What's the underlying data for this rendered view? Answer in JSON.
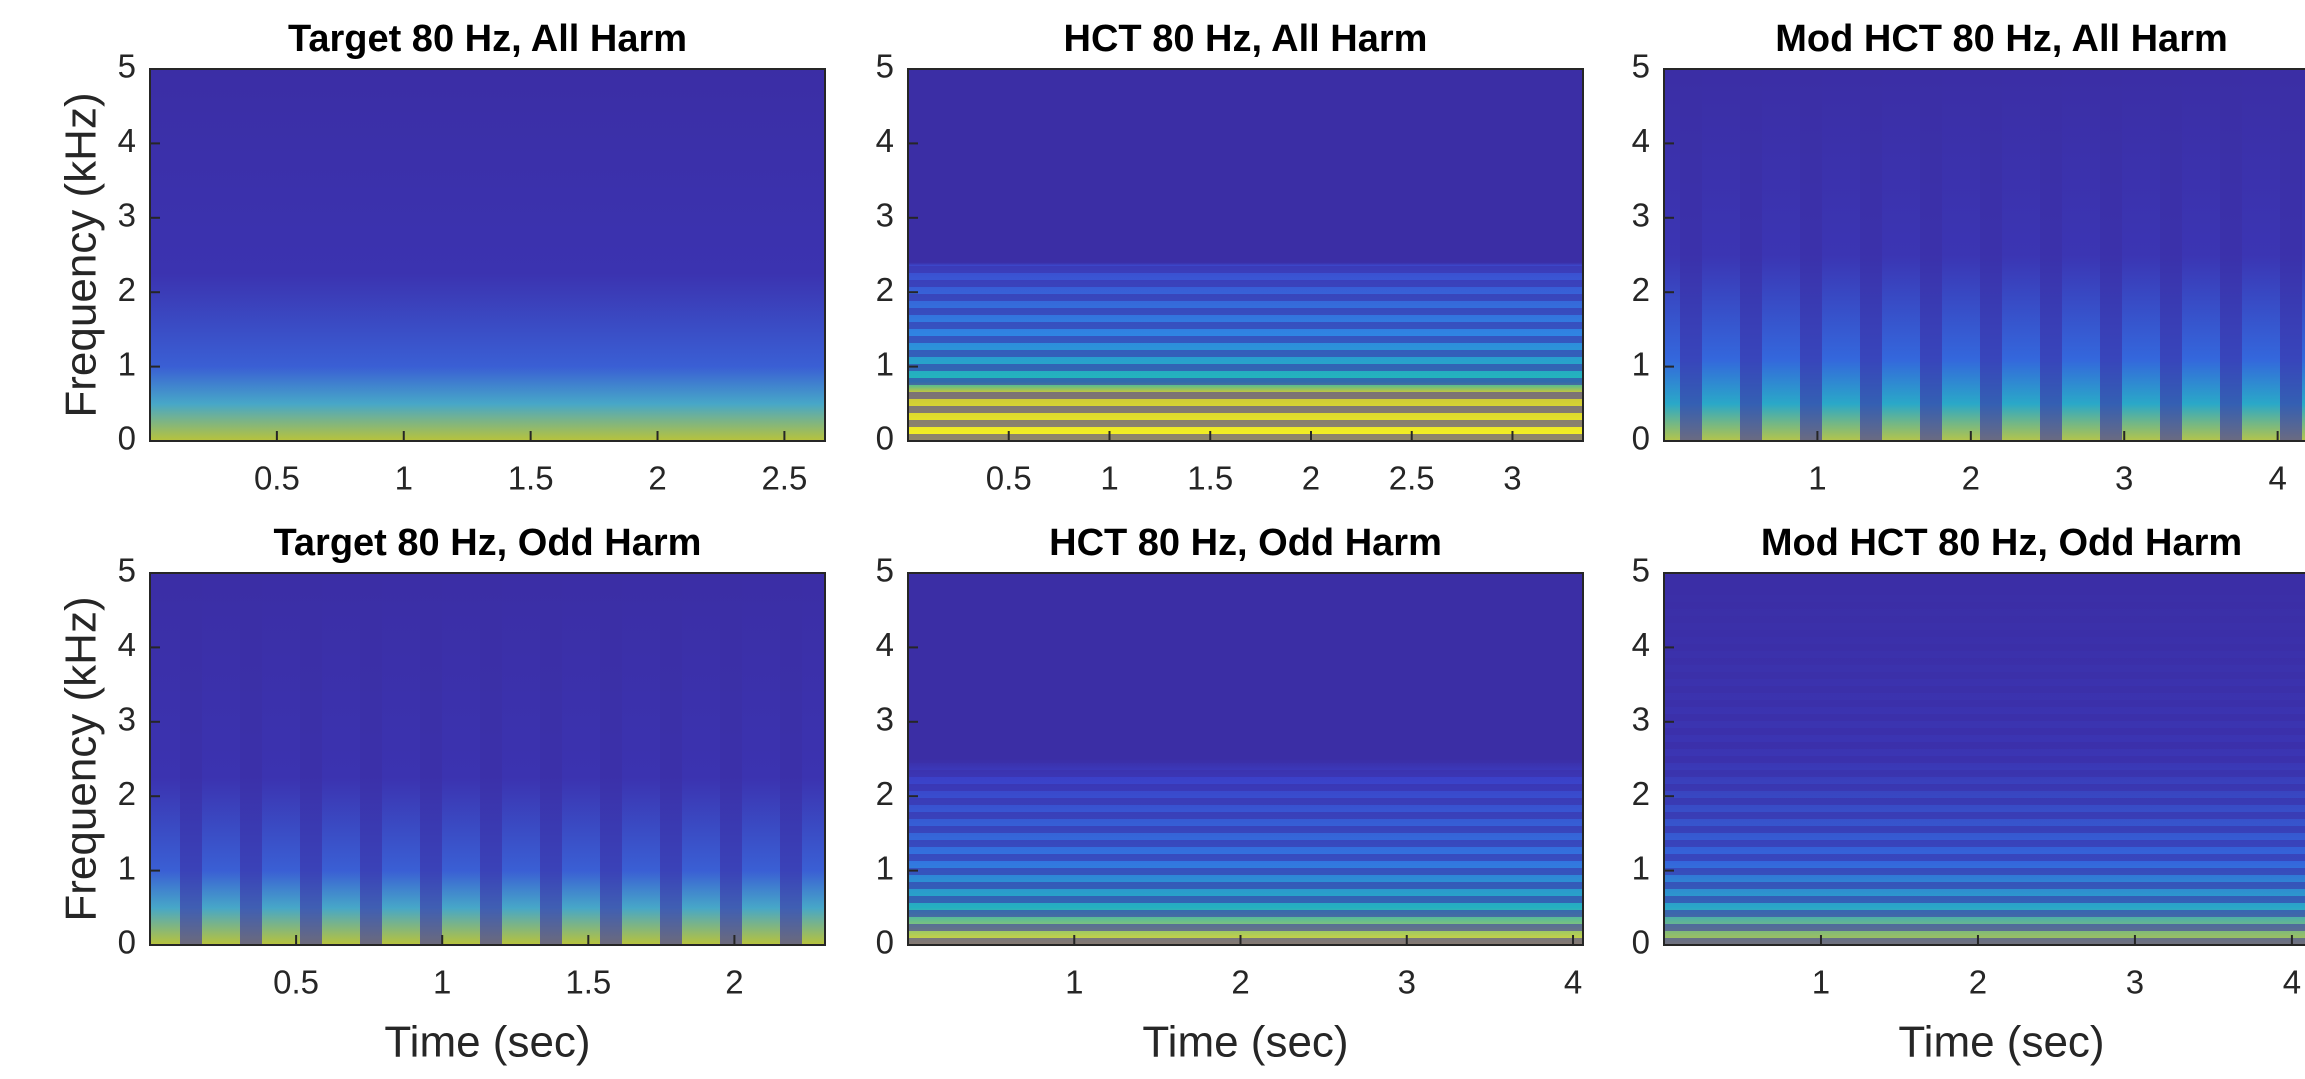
{
  "chart_data": [
    {
      "type": "spectrogram",
      "title": "Target 80 Hz, All Harm",
      "ylabel": "Frequency (kHz)",
      "xlim": [
        0,
        2.66
      ],
      "xticks": [
        0.5,
        1,
        1.5,
        2,
        2.5
      ],
      "ylim": [
        0,
        5
      ],
      "yticks": [
        0,
        1,
        2,
        3,
        4,
        5
      ]
    },
    {
      "type": "spectrogram",
      "title": "HCT 80 Hz, All Harm",
      "xlim": [
        0,
        3.35
      ],
      "xticks": [
        0.5,
        1,
        1.5,
        2,
        2.5,
        3
      ],
      "ylim": [
        0,
        5
      ],
      "yticks": [
        0,
        1,
        2,
        3,
        4,
        5
      ]
    },
    {
      "type": "spectrogram",
      "title": "Mod HCT 80 Hz, All Harm",
      "xlim": [
        0,
        4.4
      ],
      "xticks": [
        1,
        2,
        3,
        4
      ],
      "ylim": [
        0,
        5
      ],
      "yticks": [
        0,
        1,
        2,
        3,
        4,
        5
      ]
    },
    {
      "type": "spectrogram",
      "title": "Target 80 Hz, Odd Harm",
      "xlabel": "Time (sec)",
      "ylabel": "Frequency (kHz)",
      "xlim": [
        0,
        2.31
      ],
      "xticks": [
        0.5,
        1,
        1.5,
        2
      ],
      "ylim": [
        0,
        5
      ],
      "yticks": [
        0,
        1,
        2,
        3,
        4,
        5
      ]
    },
    {
      "type": "spectrogram",
      "title": "HCT 80 Hz, Odd Harm",
      "xlabel": "Time (sec)",
      "xlim": [
        0,
        4.06
      ],
      "xticks": [
        1,
        2,
        3,
        4
      ],
      "ylim": [
        0,
        5
      ],
      "yticks": [
        0,
        1,
        2,
        3,
        4,
        5
      ]
    },
    {
      "type": "spectrogram",
      "title": "Mod HCT 80 Hz, Odd Harm",
      "xlabel": "Time (sec)",
      "xlim": [
        0,
        4.3
      ],
      "xticks": [
        1,
        2,
        3,
        4
      ],
      "ylim": [
        0,
        5
      ],
      "yticks": [
        0,
        1,
        2,
        3,
        4,
        5
      ]
    }
  ]
}
